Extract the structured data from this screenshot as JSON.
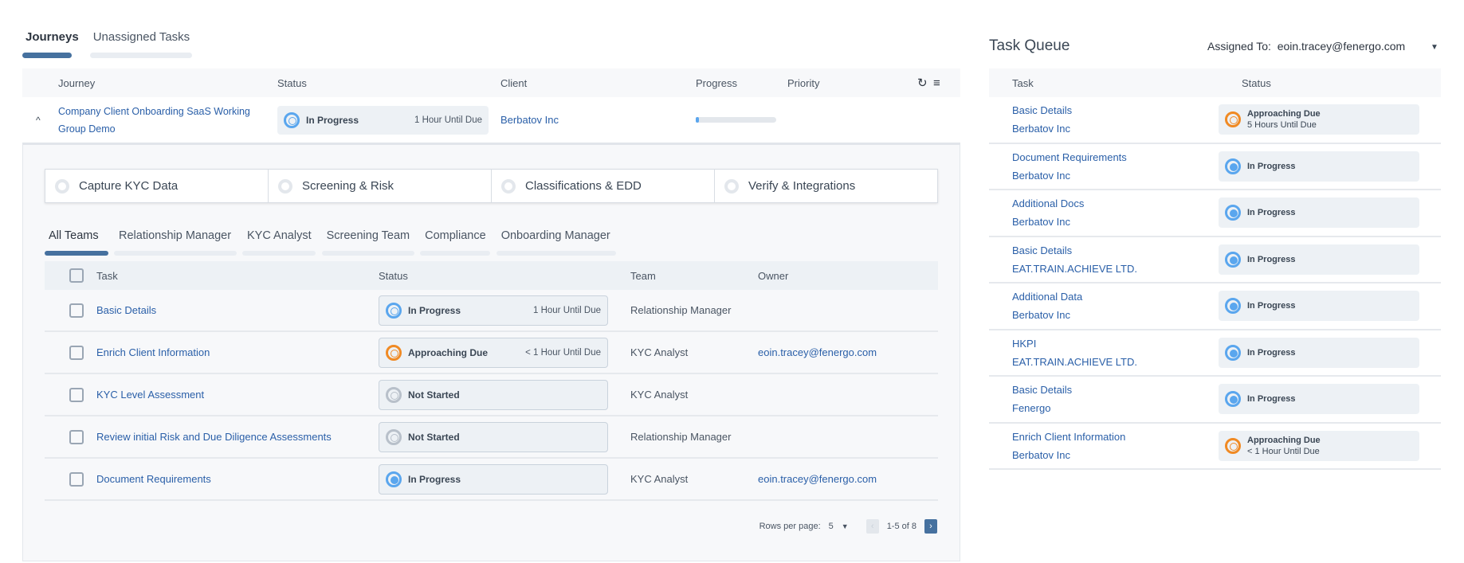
{
  "tabs": [
    {
      "label": "Journeys",
      "active": true
    },
    {
      "label": "Unassigned Tasks",
      "active": false
    }
  ],
  "journeys_table": {
    "headers": {
      "journey": "Journey",
      "status": "Status",
      "client": "Client",
      "progress": "Progress",
      "priority": "Priority"
    },
    "row": {
      "journey": "Company Client Onboarding SaaS Working Group Demo",
      "status": "In Progress",
      "due": "1 Hour Until Due",
      "client": "Berbatov Inc",
      "progress_percent": 1,
      "expanded_icon": "chevron-up"
    }
  },
  "stages": [
    "Capture KYC Data",
    "Screening & Risk",
    "Classifications & EDD",
    "Verify & Integrations"
  ],
  "team_tabs": [
    "All Teams",
    "Relationship Manager",
    "KYC Analyst",
    "Screening Team",
    "Compliance",
    "Onboarding Manager"
  ],
  "tasks_table": {
    "headers": {
      "task": "Task",
      "status": "Status",
      "team": "Team",
      "owner": "Owner"
    },
    "rows": [
      {
        "task": "Basic Details",
        "status": "In Progress",
        "status_kind": "progress",
        "due": "1 Hour Until Due",
        "team": "Relationship Manager",
        "owner": ""
      },
      {
        "task": "Enrich Client Information",
        "status": "Approaching Due",
        "status_kind": "approaching",
        "due": "< 1 Hour Until Due",
        "team": "KYC Analyst",
        "owner": "eoin.tracey@fenergo.com"
      },
      {
        "task": "KYC Level Assessment",
        "status": "Not Started",
        "status_kind": "not-started",
        "due": "",
        "team": "KYC Analyst",
        "owner": ""
      },
      {
        "task": "Review initial Risk and Due Diligence Assessments",
        "status": "Not Started",
        "status_kind": "not-started",
        "due": "",
        "team": "Relationship Manager",
        "owner": ""
      },
      {
        "task": "Document Requirements",
        "status": "In Progress",
        "status_kind": "progress-full",
        "due": "",
        "team": "KYC Analyst",
        "owner": "eoin.tracey@fenergo.com"
      }
    ],
    "pagination": {
      "rows_per_page_label": "Rows per page:",
      "rows_per_page": "5",
      "range": "1-5 of 8"
    }
  },
  "task_queue": {
    "title": "Task Queue",
    "assigned_label": "Assigned To:",
    "assigned_value": "eoin.tracey@fenergo.com",
    "headers": {
      "task": "Task",
      "status": "Status"
    },
    "rows": [
      {
        "task": "Basic Details",
        "client": "Berbatov Inc",
        "status": "Approaching Due",
        "status_kind": "approaching",
        "due": "5 Hours Until Due"
      },
      {
        "task": "Document Requirements",
        "client": "Berbatov Inc",
        "status": "In Progress",
        "status_kind": "progress-full",
        "due": ""
      },
      {
        "task": "Additional Docs",
        "client": "Berbatov Inc",
        "status": "In Progress",
        "status_kind": "progress-full",
        "due": ""
      },
      {
        "task": "Basic Details",
        "client": "EAT.TRAIN.ACHIEVE LTD.",
        "status": "In Progress",
        "status_kind": "progress-full",
        "due": ""
      },
      {
        "task": "Additional Data",
        "client": "Berbatov Inc",
        "status": "In Progress",
        "status_kind": "progress-full",
        "due": ""
      },
      {
        "task": "HKPI",
        "client": "EAT.TRAIN.ACHIEVE LTD.",
        "status": "In Progress",
        "status_kind": "progress-full",
        "due": ""
      },
      {
        "task": "Basic Details",
        "client": "Fenergo",
        "status": "In Progress",
        "status_kind": "progress-full",
        "due": ""
      },
      {
        "task": "Enrich Client Information",
        "client": "Berbatov Inc",
        "status": "Approaching Due",
        "status_kind": "approaching",
        "due": "< 1 Hour Until Due"
      }
    ]
  },
  "colors": {
    "accent": "#46719f",
    "link": "#2a5fa8",
    "in_progress": "#5aa6ee",
    "approaching": "#f08a24",
    "not_started": "#b8c0ca"
  }
}
